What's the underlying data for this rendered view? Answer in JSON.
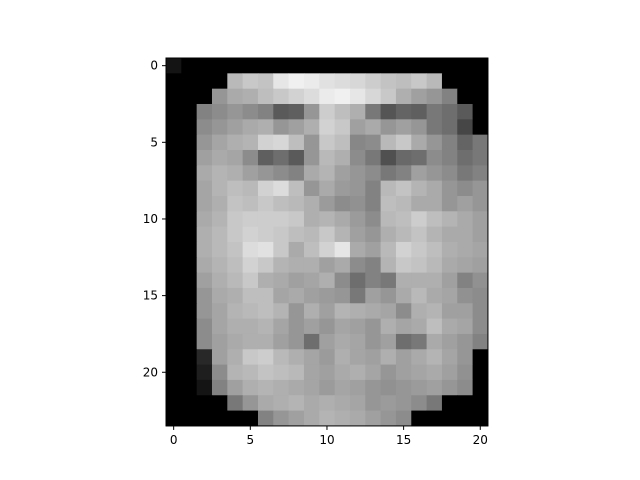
{
  "chart_data": {
    "type": "heatmap",
    "colormap": "gray",
    "rows": 24,
    "cols": 21,
    "xticks": [
      0,
      5,
      10,
      15,
      20
    ],
    "yticks": [
      0,
      5,
      10,
      15,
      20
    ],
    "values": [
      [
        20,
        0,
        0,
        0,
        0,
        0,
        0,
        0,
        0,
        0,
        0,
        0,
        0,
        0,
        0,
        0,
        0,
        0,
        0,
        0,
        0
      ],
      [
        0,
        0,
        0,
        0,
        185,
        200,
        195,
        230,
        240,
        235,
        225,
        220,
        215,
        205,
        195,
        190,
        200,
        185,
        0,
        0,
        0
      ],
      [
        0,
        0,
        0,
        150,
        170,
        175,
        190,
        200,
        210,
        220,
        235,
        240,
        230,
        215,
        200,
        175,
        160,
        150,
        130,
        0,
        0
      ],
      [
        0,
        0,
        130,
        140,
        150,
        140,
        130,
        90,
        95,
        150,
        205,
        190,
        175,
        120,
        85,
        100,
        95,
        120,
        110,
        90,
        0
      ],
      [
        0,
        0,
        140,
        150,
        160,
        170,
        175,
        150,
        160,
        175,
        210,
        200,
        160,
        170,
        150,
        160,
        150,
        120,
        110,
        70,
        0
      ],
      [
        0,
        0,
        150,
        165,
        175,
        180,
        210,
        215,
        190,
        150,
        200,
        190,
        135,
        140,
        185,
        200,
        170,
        150,
        130,
        100,
        120
      ],
      [
        0,
        0,
        160,
        170,
        165,
        140,
        95,
        110,
        90,
        150,
        185,
        175,
        140,
        120,
        80,
        105,
        110,
        140,
        130,
        110,
        120
      ],
      [
        0,
        0,
        170,
        180,
        175,
        160,
        150,
        140,
        130,
        170,
        180,
        160,
        150,
        140,
        120,
        130,
        160,
        150,
        140,
        120,
        130
      ],
      [
        0,
        0,
        165,
        180,
        190,
        185,
        210,
        220,
        190,
        150,
        170,
        155,
        150,
        130,
        185,
        195,
        180,
        170,
        150,
        140,
        150
      ],
      [
        0,
        0,
        165,
        175,
        195,
        190,
        200,
        190,
        185,
        175,
        155,
        140,
        145,
        130,
        190,
        185,
        170,
        170,
        150,
        160,
        150
      ],
      [
        0,
        0,
        170,
        180,
        200,
        205,
        205,
        205,
        200,
        175,
        180,
        170,
        155,
        140,
        185,
        190,
        205,
        190,
        180,
        170,
        160
      ],
      [
        0,
        0,
        175,
        185,
        200,
        210,
        205,
        200,
        190,
        185,
        200,
        180,
        160,
        150,
        175,
        185,
        195,
        180,
        170,
        170,
        160
      ],
      [
        0,
        0,
        175,
        185,
        195,
        220,
        225,
        200,
        170,
        190,
        210,
        230,
        170,
        160,
        185,
        210,
        200,
        190,
        175,
        170,
        165
      ],
      [
        0,
        0,
        170,
        180,
        190,
        210,
        200,
        180,
        175,
        175,
        160,
        170,
        140,
        130,
        180,
        200,
        195,
        185,
        170,
        165,
        160
      ],
      [
        0,
        0,
        160,
        175,
        185,
        200,
        175,
        170,
        160,
        165,
        175,
        140,
        110,
        130,
        120,
        175,
        175,
        175,
        160,
        130,
        145
      ],
      [
        0,
        0,
        150,
        170,
        175,
        190,
        190,
        165,
        170,
        160,
        155,
        150,
        120,
        160,
        150,
        170,
        185,
        170,
        165,
        145,
        140
      ],
      [
        0,
        0,
        150,
        165,
        180,
        185,
        190,
        180,
        150,
        175,
        160,
        180,
        175,
        170,
        165,
        140,
        175,
        180,
        160,
        160,
        140
      ],
      [
        0,
        0,
        140,
        165,
        175,
        175,
        180,
        165,
        150,
        160,
        150,
        165,
        160,
        150,
        175,
        165,
        170,
        190,
        170,
        165,
        140
      ],
      [
        0,
        0,
        140,
        160,
        170,
        175,
        175,
        160,
        150,
        110,
        160,
        170,
        165,
        150,
        160,
        110,
        120,
        170,
        160,
        150,
        130
      ],
      [
        0,
        0,
        40,
        160,
        175,
        200,
        205,
        185,
        175,
        165,
        155,
        175,
        165,
        160,
        175,
        160,
        170,
        180,
        165,
        150,
        0
      ],
      [
        0,
        0,
        30,
        140,
        180,
        185,
        195,
        190,
        185,
        165,
        160,
        170,
        175,
        165,
        150,
        160,
        165,
        170,
        160,
        145,
        0
      ],
      [
        0,
        0,
        20,
        130,
        160,
        175,
        180,
        175,
        170,
        165,
        155,
        165,
        160,
        150,
        145,
        150,
        155,
        160,
        150,
        140,
        0
      ],
      [
        0,
        0,
        0,
        0,
        120,
        150,
        170,
        175,
        180,
        170,
        175,
        170,
        165,
        150,
        155,
        150,
        140,
        120,
        0,
        0,
        0
      ],
      [
        0,
        0,
        0,
        0,
        0,
        0,
        130,
        150,
        160,
        170,
        180,
        175,
        170,
        160,
        150,
        140,
        0,
        0,
        0,
        0,
        0
      ]
    ]
  }
}
